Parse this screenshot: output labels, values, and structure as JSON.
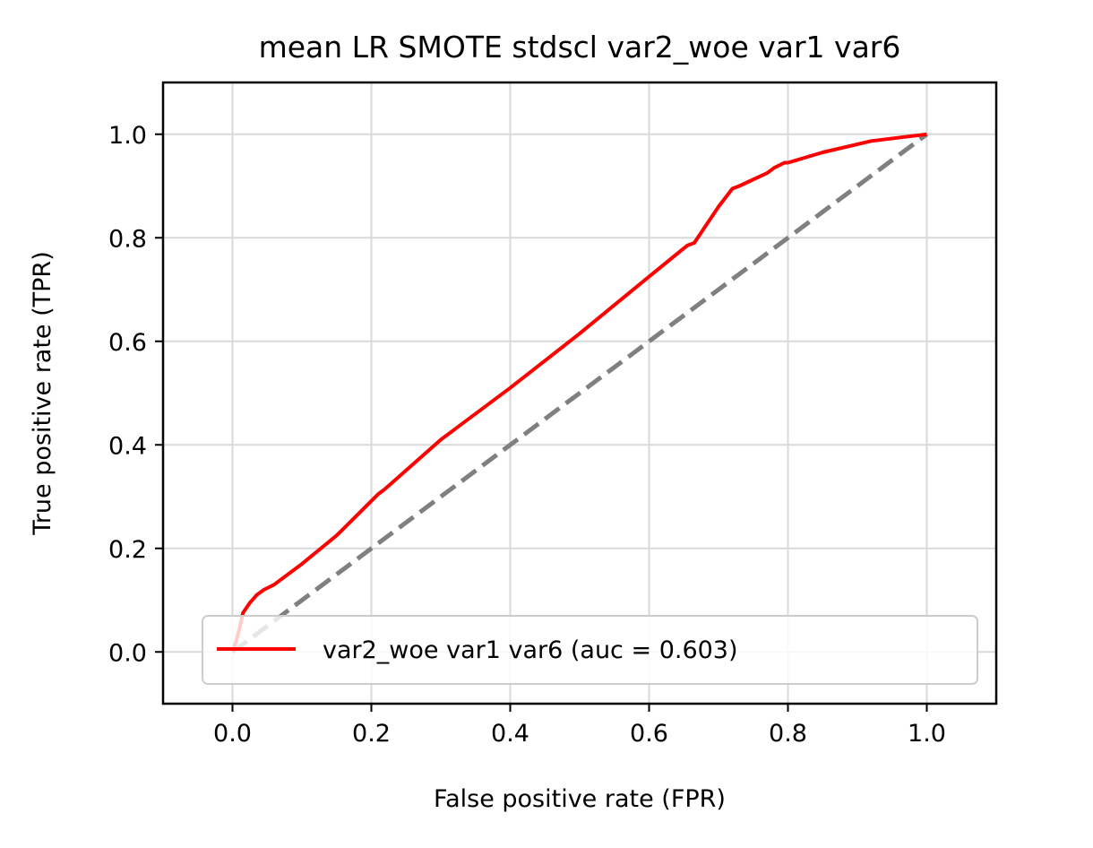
{
  "chart_data": {
    "type": "line",
    "title": "mean LR SMOTE stdscl var2_woe var1 var6",
    "xlabel": "False positive rate (FPR)",
    "ylabel": "True positive rate (TPR)",
    "xlim": [
      -0.1,
      1.1
    ],
    "ylim": [
      -0.1,
      1.1
    ],
    "xticks": [
      "0.0",
      "0.2",
      "0.4",
      "0.6",
      "0.8",
      "1.0"
    ],
    "yticks": [
      "0.0",
      "0.2",
      "0.4",
      "0.6",
      "0.8",
      "1.0"
    ],
    "grid": true,
    "legend_position": "lower right",
    "series": [
      {
        "name": "var2_woe var1 var6 (auc = 0.603)",
        "color": "#ff0000",
        "style": "solid",
        "x": [
          0.0,
          0.005,
          0.01,
          0.015,
          0.025,
          0.035,
          0.045,
          0.06,
          0.1,
          0.15,
          0.21,
          0.22,
          0.3,
          0.4,
          0.5,
          0.6,
          0.655,
          0.665,
          0.7,
          0.72,
          0.73,
          0.77,
          0.78,
          0.795,
          0.8,
          0.85,
          0.92,
          1.0
        ],
        "y": [
          0.0,
          0.02,
          0.045,
          0.075,
          0.095,
          0.11,
          0.12,
          0.13,
          0.17,
          0.225,
          0.305,
          0.315,
          0.41,
          0.51,
          0.615,
          0.725,
          0.785,
          0.79,
          0.86,
          0.895,
          0.9,
          0.925,
          0.935,
          0.945,
          0.945,
          0.965,
          0.987,
          1.0
        ]
      },
      {
        "color": "#808080",
        "style": "dashed",
        "x": [
          0.0,
          1.0
        ],
        "y": [
          0.0,
          1.0
        ]
      }
    ]
  }
}
